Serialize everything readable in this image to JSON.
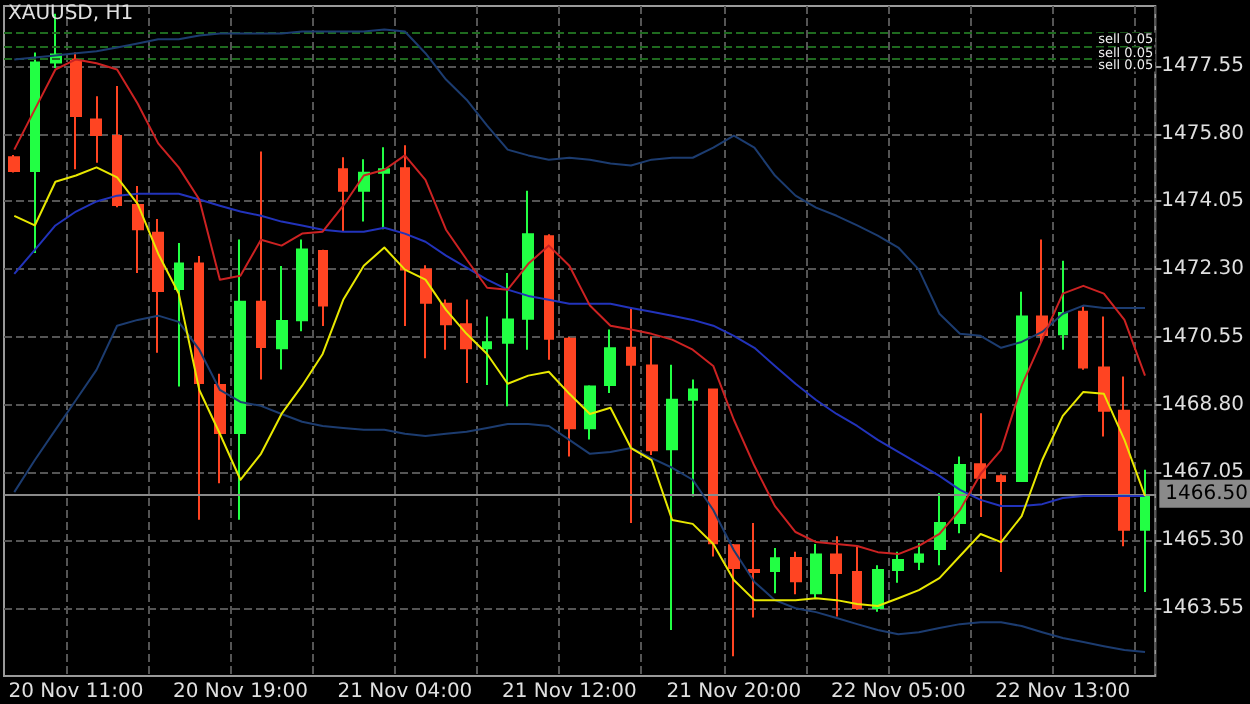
{
  "chart_data": {
    "type": "candlestick",
    "title": "XAUUSD, H1",
    "categories": [
      null,
      null,
      null,
      "20 Nov 11:00",
      null,
      null,
      null,
      null,
      null,
      null,
      null,
      "20 Nov 19:00",
      null,
      null,
      null,
      null,
      null,
      null,
      null,
      "21 Nov 04:00",
      null,
      null,
      null,
      null,
      null,
      null,
      null,
      "21 Nov 12:00",
      null,
      null,
      null,
      null,
      null,
      null,
      null,
      "21 Nov 20:00",
      null,
      null,
      null,
      null,
      null,
      null,
      null,
      "22 Nov 05:00",
      null,
      null,
      null,
      null,
      null,
      null,
      null,
      "22 Nov 13:00",
      null,
      null,
      null,
      null
    ],
    "series": [
      {
        "type": "line",
        "color": "#1c3c70",
        "values": [
          1477.72,
          1477.77,
          1477.82,
          1477.88,
          1477.93,
          1478.03,
          1478.13,
          1478.24,
          1478.24,
          1478.34,
          1478.39,
          1478.39,
          1478.39,
          1478.39,
          1478.44,
          1478.44,
          1478.44,
          1478.44,
          1478.49,
          1478.44,
          1477.88,
          1477.2,
          1476.68,
          1476.01,
          1475.39,
          1475.24,
          1475.13,
          1475.18,
          1475.13,
          1475.03,
          1474.98,
          1475.13,
          1475.18,
          1475.18,
          1475.44,
          1475.75,
          1475.44,
          1474.72,
          1474.2,
          1473.89,
          1473.68,
          1473.43,
          1473.17,
          1472.86,
          1472.29,
          1471.15,
          1470.63,
          1470.58,
          1470.27,
          1470.42,
          1470.68,
          1471.15,
          1471.36,
          1471.3,
          1471.3,
          1471.3
        ]
      },
      {
        "type": "line",
        "color": "#2233bb",
        "values": [
          1472.18,
          1472.8,
          1473.43,
          1473.79,
          1474.05,
          1474.2,
          1474.25,
          1474.25,
          1474.25,
          1474.1,
          1473.94,
          1473.79,
          1473.68,
          1473.53,
          1473.43,
          1473.32,
          1473.27,
          1473.27,
          1473.37,
          1473.22,
          1473.01,
          1472.65,
          1472.34,
          1472.03,
          1471.77,
          1471.61,
          1471.51,
          1471.41,
          1471.41,
          1471.41,
          1471.3,
          1471.2,
          1471.1,
          1470.99,
          1470.84,
          1470.58,
          1470.27,
          1469.8,
          1469.34,
          1468.92,
          1468.56,
          1468.25,
          1467.89,
          1467.58,
          1467.27,
          1466.96,
          1466.6,
          1466.34,
          1466.18,
          1466.18,
          1466.23,
          1466.39,
          1466.44,
          1466.44,
          1466.44,
          1466.44
        ]
      },
      {
        "type": "line",
        "color": "#1c3c70",
        "values": [
          1466.54,
          1467.37,
          1468.15,
          1468.92,
          1469.7,
          1470.84,
          1470.99,
          1471.1,
          1470.94,
          1470.22,
          1469.18,
          1468.87,
          1468.77,
          1468.56,
          1468.36,
          1468.25,
          1468.2,
          1468.15,
          1468.15,
          1468.05,
          1467.99,
          1468.05,
          1468.1,
          1468.2,
          1468.3,
          1468.3,
          1468.25,
          1467.89,
          1467.53,
          1467.58,
          1467.68,
          1467.42,
          1467.17,
          1466.86,
          1466.08,
          1465.04,
          1464.22,
          1463.75,
          1463.54,
          1463.44,
          1463.29,
          1463.13,
          1462.98,
          1462.87,
          1462.92,
          1463.03,
          1463.13,
          1463.18,
          1463.18,
          1463.08,
          1462.92,
          1462.77,
          1462.67,
          1462.56,
          1462.46,
          1462.41
        ]
      },
      {
        "type": "line",
        "color": "#cc2222",
        "values": [
          1475.39,
          1476.43,
          1477.46,
          1477.72,
          1477.62,
          1477.46,
          1476.58,
          1475.55,
          1474.93,
          1474.1,
          1472.03,
          1472.13,
          1473.06,
          1472.91,
          1473.22,
          1473.27,
          1473.94,
          1474.72,
          1474.87,
          1475.24,
          1474.61,
          1473.32,
          1472.55,
          1471.82,
          1471.77,
          1472.44,
          1472.91,
          1472.39,
          1471.36,
          1470.84,
          1470.74,
          1470.63,
          1470.48,
          1470.22,
          1469.8,
          1468.41,
          1467.22,
          1466.18,
          1465.51,
          1465.25,
          1465.2,
          1465.15,
          1464.99,
          1464.94,
          1465.15,
          1465.46,
          1466.08,
          1467.01,
          1467.63,
          1469.29,
          1470.48,
          1471.67,
          1471.87,
          1471.67,
          1470.99,
          1469.55
        ]
      },
      {
        "type": "line",
        "color": "#e8e800",
        "values": [
          1473.68,
          1473.43,
          1474.56,
          1474.72,
          1474.93,
          1474.67,
          1473.99,
          1472.7,
          1471.67,
          1469.18,
          1468.05,
          1466.86,
          1467.53,
          1468.56,
          1469.29,
          1470.11,
          1471.51,
          1472.39,
          1472.86,
          1472.29,
          1472.03,
          1471.25,
          1470.63,
          1470.11,
          1469.34,
          1469.55,
          1469.65,
          1469.08,
          1468.56,
          1468.72,
          1467.68,
          1467.37,
          1465.82,
          1465.72,
          1465.2,
          1464.27,
          1463.75,
          1463.75,
          1463.75,
          1463.8,
          1463.75,
          1463.65,
          1463.6,
          1463.8,
          1464.01,
          1464.32,
          1464.89,
          1465.46,
          1465.25,
          1465.92,
          1467.37,
          1468.51,
          1469.13,
          1469.08,
          1467.89,
          1466.44
        ]
      },
      {
        "type": "candlestick",
        "colors": [
          "#ff4422",
          "#22ff44",
          "#22ff44",
          "#ff4422",
          "#ff4422",
          "#ff4422",
          "#ff4422",
          "#ff4422",
          "#22ff44",
          "#ff4422",
          "#ff4422",
          "#22ff44",
          "#ff4422",
          "#22ff44",
          "#22ff44",
          "#ff4422",
          "#ff4422",
          "#22ff44",
          "#22ff44",
          "#ff4422",
          "#ff4422",
          "#ff4422",
          "#ff4422",
          "#22ff44",
          "#22ff44",
          "#22ff44",
          "#ff4422",
          "#ff4422",
          "#22ff44",
          "#22ff44",
          "#ff4422",
          "#ff4422",
          "#22ff44",
          "#22ff44",
          "#ff4422",
          "#ff4422",
          "#ff4422",
          "#22ff44",
          "#ff4422",
          "#22ff44",
          "#ff4422",
          "#ff4422",
          "#22ff44",
          "#22ff44",
          "#22ff44",
          "#22ff44",
          "#22ff44",
          "#ff4422",
          "#ff4422",
          "#22ff44",
          "#ff4422",
          "#22ff44",
          "#ff4422",
          "#ff4422",
          "#ff4422",
          "#22ff44"
        ],
        "ohlc": [
          [
            1475.19,
            1475.25,
            1474.8,
            1474.84
          ],
          [
            1474.84,
            1477.9,
            1472.72,
            1477.64
          ],
          [
            1477.64,
            1478.9,
            1477.5,
            1477.85
          ],
          [
            1477.72,
            1477.9,
            1474.88,
            1476.26
          ],
          [
            1476.17,
            1476.77,
            1475.05,
            1475.77
          ],
          [
            1475.74,
            1477.03,
            1473.9,
            1473.96
          ],
          [
            1473.96,
            1474.45,
            1472.2,
            1473.33
          ],
          [
            1473.24,
            1473.6,
            1470.14,
            1471.74
          ],
          [
            1471.79,
            1472.98,
            1469.27,
            1472.45
          ],
          [
            1472.45,
            1472.64,
            1465.83,
            1469.36
          ],
          [
            1469.31,
            1469.6,
            1466.77,
            1468.07
          ],
          [
            1468.07,
            1473.07,
            1465.83,
            1471.46
          ],
          [
            1471.46,
            1475.34,
            1469.45,
            1470.29
          ],
          [
            1470.26,
            1472.38,
            1469.71,
            1470.96
          ],
          [
            1470.98,
            1473.07,
            1470.7,
            1472.81
          ],
          [
            1472.77,
            1472.8,
            1470.83,
            1471.36
          ],
          [
            1474.88,
            1475.19,
            1473.27,
            1474.33
          ],
          [
            1474.33,
            1475.14,
            1473.53,
            1474.79
          ],
          [
            1474.79,
            1475.45,
            1473.33,
            1474.88
          ],
          [
            1474.91,
            1475.5,
            1470.83,
            1472.29
          ],
          [
            1472.29,
            1472.4,
            1470.0,
            1471.43
          ],
          [
            1471.41,
            1471.52,
            1470.22,
            1470.88
          ],
          [
            1470.88,
            1471.52,
            1469.36,
            1470.26
          ],
          [
            1470.26,
            1471.08,
            1469.31,
            1470.41
          ],
          [
            1470.4,
            1472.2,
            1468.76,
            1471.0
          ],
          [
            1471.02,
            1474.33,
            1470.22,
            1473.2
          ],
          [
            1473.15,
            1473.2,
            1469.96,
            1470.5
          ],
          [
            1470.5,
            1470.55,
            1467.46,
            1468.19
          ],
          [
            1468.19,
            1469.3,
            1467.9,
            1469.27
          ],
          [
            1469.31,
            1470.74,
            1469.1,
            1470.26
          ],
          [
            1470.27,
            1471.31,
            1465.74,
            1469.83
          ],
          [
            1469.81,
            1470.57,
            1467.5,
            1467.62
          ],
          [
            1467.65,
            1469.83,
            1462.98,
            1468.93
          ],
          [
            1468.93,
            1469.45,
            1466.43,
            1469.19
          ],
          [
            1469.19,
            1469.2,
            1464.88,
            1465.22
          ],
          [
            1465.17,
            1465.2,
            1462.3,
            1464.58
          ],
          [
            1464.53,
            1465.74,
            1463.3,
            1464.48
          ],
          [
            1464.5,
            1465.1,
            1463.93,
            1464.83
          ],
          [
            1464.84,
            1465.0,
            1463.9,
            1464.24
          ],
          [
            1463.93,
            1465.2,
            1463.8,
            1464.93
          ],
          [
            1464.93,
            1465.4,
            1463.33,
            1464.45
          ],
          [
            1464.48,
            1465.12,
            1463.5,
            1463.55
          ],
          [
            1463.55,
            1464.65,
            1463.45,
            1464.53
          ],
          [
            1464.53,
            1465.0,
            1464.2,
            1464.79
          ],
          [
            1464.74,
            1465.22,
            1464.53,
            1464.93
          ],
          [
            1465.07,
            1466.52,
            1464.65,
            1465.74
          ],
          [
            1465.74,
            1467.46,
            1465.48,
            1467.24
          ],
          [
            1467.26,
            1468.58,
            1465.9,
            1466.91
          ],
          [
            1466.95,
            1467.0,
            1464.48,
            1466.83
          ],
          [
            1466.83,
            1471.72,
            1466.8,
            1471.08
          ],
          [
            1471.08,
            1473.07,
            1470.4,
            1470.6
          ],
          [
            1470.62,
            1472.52,
            1470.22,
            1471.17
          ],
          [
            1471.2,
            1471.34,
            1469.7,
            1469.76
          ],
          [
            1469.76,
            1471.08,
            1467.98,
            1468.64
          ],
          [
            1468.64,
            1469.53,
            1465.14,
            1465.57
          ],
          [
            1465.57,
            1467.12,
            1463.96,
            1466.43
          ]
        ]
      }
    ],
    "ylim": [
      1461.79,
      1479.1
    ],
    "yticks": [
      {
        "value": 1463.55,
        "label": "1463.55"
      },
      {
        "value": 1465.3,
        "label": "1465.30"
      },
      {
        "value": 1467.05,
        "label": "1467.05"
      },
      {
        "value": 1468.8,
        "label": "1468.80"
      },
      {
        "value": 1470.55,
        "label": "1470.55"
      },
      {
        "value": 1472.3,
        "label": "1472.30"
      },
      {
        "value": 1474.05,
        "label": "1474.05"
      },
      {
        "value": 1475.8,
        "label": "1475.80"
      },
      {
        "value": 1477.55,
        "label": "1477.55"
      }
    ],
    "ref_lines": [
      {
        "axis": "y",
        "value": 1478.41,
        "label": "sell 0.05",
        "color": "#1f6a1f",
        "line_style": "dashed"
      },
      {
        "axis": "y",
        "value": 1478.03,
        "label": "sell 0.05",
        "color": "#1f6a1f",
        "line_style": "dashed"
      },
      {
        "axis": "y",
        "value": 1477.72,
        "label": "sell 0.05",
        "color": "#1f6a1f",
        "line_style": "dashed"
      },
      {
        "axis": "y",
        "value": 1466.5,
        "label": "1466.50",
        "color": "#8a8a8a",
        "line_style": "solid"
      }
    ],
    "grid": true
  }
}
